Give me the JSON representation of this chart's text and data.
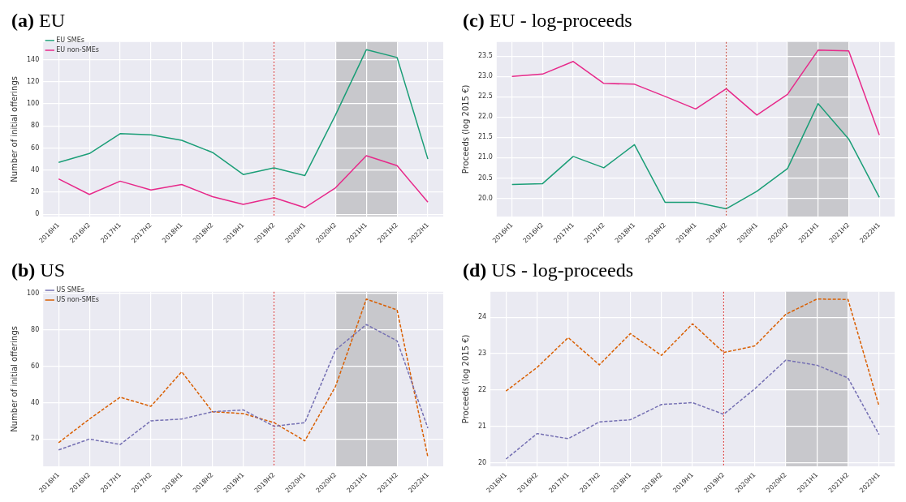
{
  "chart_data": [
    {
      "type": "line",
      "title": "(a) EU",
      "ylabel": "Number of initial offerings",
      "categories": [
        "2016H1",
        "2016H2",
        "2017H1",
        "2017H2",
        "2018H1",
        "2018H2",
        "2019H1",
        "2019H2",
        "2020H1",
        "2020H2",
        "2021H1",
        "2021H2",
        "2022H1"
      ],
      "series": [
        {
          "name": "EU SMEs",
          "color": "#1b9e77",
          "values": [
            47,
            55,
            73,
            72,
            67,
            56,
            36,
            42,
            35,
            90,
            149,
            142,
            50
          ]
        },
        {
          "name": "EU non-SMEs",
          "color": "#e7298a",
          "values": [
            32,
            18,
            30,
            22,
            27,
            16,
            9,
            15,
            6,
            24,
            53,
            44,
            11
          ]
        }
      ],
      "ylim": [
        -2,
        156
      ],
      "yticks": [
        0,
        20,
        40,
        60,
        80,
        100,
        120,
        140
      ],
      "grid": true,
      "legend": "top left",
      "line_style": "solid",
      "marker": "none",
      "ref_lines": [
        {
          "axis": "x",
          "value": "2019H2",
          "color": "#d62728",
          "line_style": "dotted"
        }
      ],
      "bands": [
        {
          "axis": "x",
          "from": "2020H2",
          "to": "2021H2",
          "color": "#c8c8cc"
        }
      ]
    },
    {
      "type": "line",
      "title": "(c) EU - log-proceeds",
      "ylabel": "Proceeds (log 2015 €)",
      "categories": [
        "2016H1",
        "2016H2",
        "2017H1",
        "2017H2",
        "2018H1",
        "2018H2",
        "2019H1",
        "2019H2",
        "2020H1",
        "2020H2",
        "2021H1",
        "2021H2",
        "2022H1"
      ],
      "series": [
        {
          "color": "#1b9e77",
          "values": [
            20.34,
            20.36,
            21.03,
            20.75,
            21.32,
            19.9,
            19.9,
            19.74,
            20.17,
            20.73,
            22.33,
            21.46,
            20.02
          ]
        },
        {
          "color": "#e7298a",
          "values": [
            23.0,
            23.06,
            23.37,
            22.83,
            22.81,
            22.51,
            22.2,
            22.7,
            22.05,
            22.56,
            23.65,
            23.63,
            21.56
          ]
        }
      ],
      "ylim": [
        19.55,
        23.85
      ],
      "yticks": [
        {
          "value": 20,
          "label": "20.0"
        },
        20.5,
        {
          "value": 21,
          "label": "21.0"
        },
        21.5,
        {
          "value": 22,
          "label": "22.0"
        },
        22.5,
        {
          "value": 23,
          "label": "23.0"
        },
        23.5
      ],
      "grid": true,
      "line_style": "solid",
      "marker": "none",
      "ref_lines": [
        {
          "axis": "x",
          "value": "2019H2",
          "color": "#c0392b",
          "line_style": "dotted"
        }
      ],
      "bands": [
        {
          "axis": "x",
          "from": "2020H2",
          "to": "2021H2",
          "color": "#c8c8cc"
        }
      ]
    },
    {
      "type": "line",
      "title": "(b) US",
      "ylabel": "Number of initial offerings",
      "categories": [
        "2016H1",
        "2016H2",
        "2017H1",
        "2017H2",
        "2018H1",
        "2018H2",
        "2019H1",
        "2019H2",
        "2020H1",
        "2020H2",
        "2021H1",
        "2021H2",
        "2022H1"
      ],
      "series": [
        {
          "name": "US SMEs",
          "color": "#7570b3",
          "values": [
            14,
            20,
            17,
            30,
            31,
            35,
            36,
            27,
            29,
            69,
            83,
            74,
            26
          ]
        },
        {
          "name": "US non-SMEs",
          "color": "#d95f02",
          "values": [
            18,
            31,
            43,
            38,
            57,
            35,
            34,
            29,
            19,
            49,
            97,
            91,
            10
          ]
        }
      ],
      "ylim": [
        5,
        101
      ],
      "yticks": [
        20,
        40,
        60,
        80,
        100
      ],
      "grid": true,
      "legend": "top left",
      "line_style": "dashed",
      "marker": "none",
      "ref_lines": [
        {
          "axis": "x",
          "value": "2019H2",
          "color": "#d62728",
          "line_style": "dotted"
        }
      ],
      "bands": [
        {
          "axis": "x",
          "from": "2020H2",
          "to": "2021H2",
          "color": "#c8c8cc"
        }
      ]
    },
    {
      "type": "line",
      "title": "(d) US - log-proceeds",
      "ylabel": "Proceeds (log 2015 €)",
      "categories": [
        "2016H1",
        "2016H2",
        "2017H1",
        "2017H2",
        "2018H1",
        "2018H2",
        "2019H1",
        "2019H2",
        "2020H1",
        "2020H2",
        "2021H1",
        "2021H2",
        "2022H1"
      ],
      "series": [
        {
          "color": "#7570b3",
          "values": [
            20.1,
            20.8,
            20.66,
            21.12,
            21.18,
            21.6,
            21.65,
            21.33,
            22.03,
            22.82,
            22.68,
            22.33,
            20.77
          ]
        },
        {
          "color": "#d95f02",
          "values": [
            21.97,
            22.62,
            23.44,
            22.69,
            23.55,
            22.95,
            23.82,
            23.03,
            23.21,
            24.08,
            24.5,
            24.49,
            21.55
          ]
        }
      ],
      "ylim": [
        19.9,
        24.7
      ],
      "yticks": [
        20,
        21,
        22,
        23,
        24
      ],
      "grid": true,
      "line_style": "dashed",
      "marker": "none",
      "ref_lines": [
        {
          "axis": "x",
          "value": "2019H2",
          "color": "#d62728",
          "line_style": "dotted"
        }
      ],
      "bands": [
        {
          "axis": "x",
          "from": "2020H2",
          "to": "2021H2",
          "color": "#c8c8cc"
        }
      ]
    }
  ]
}
